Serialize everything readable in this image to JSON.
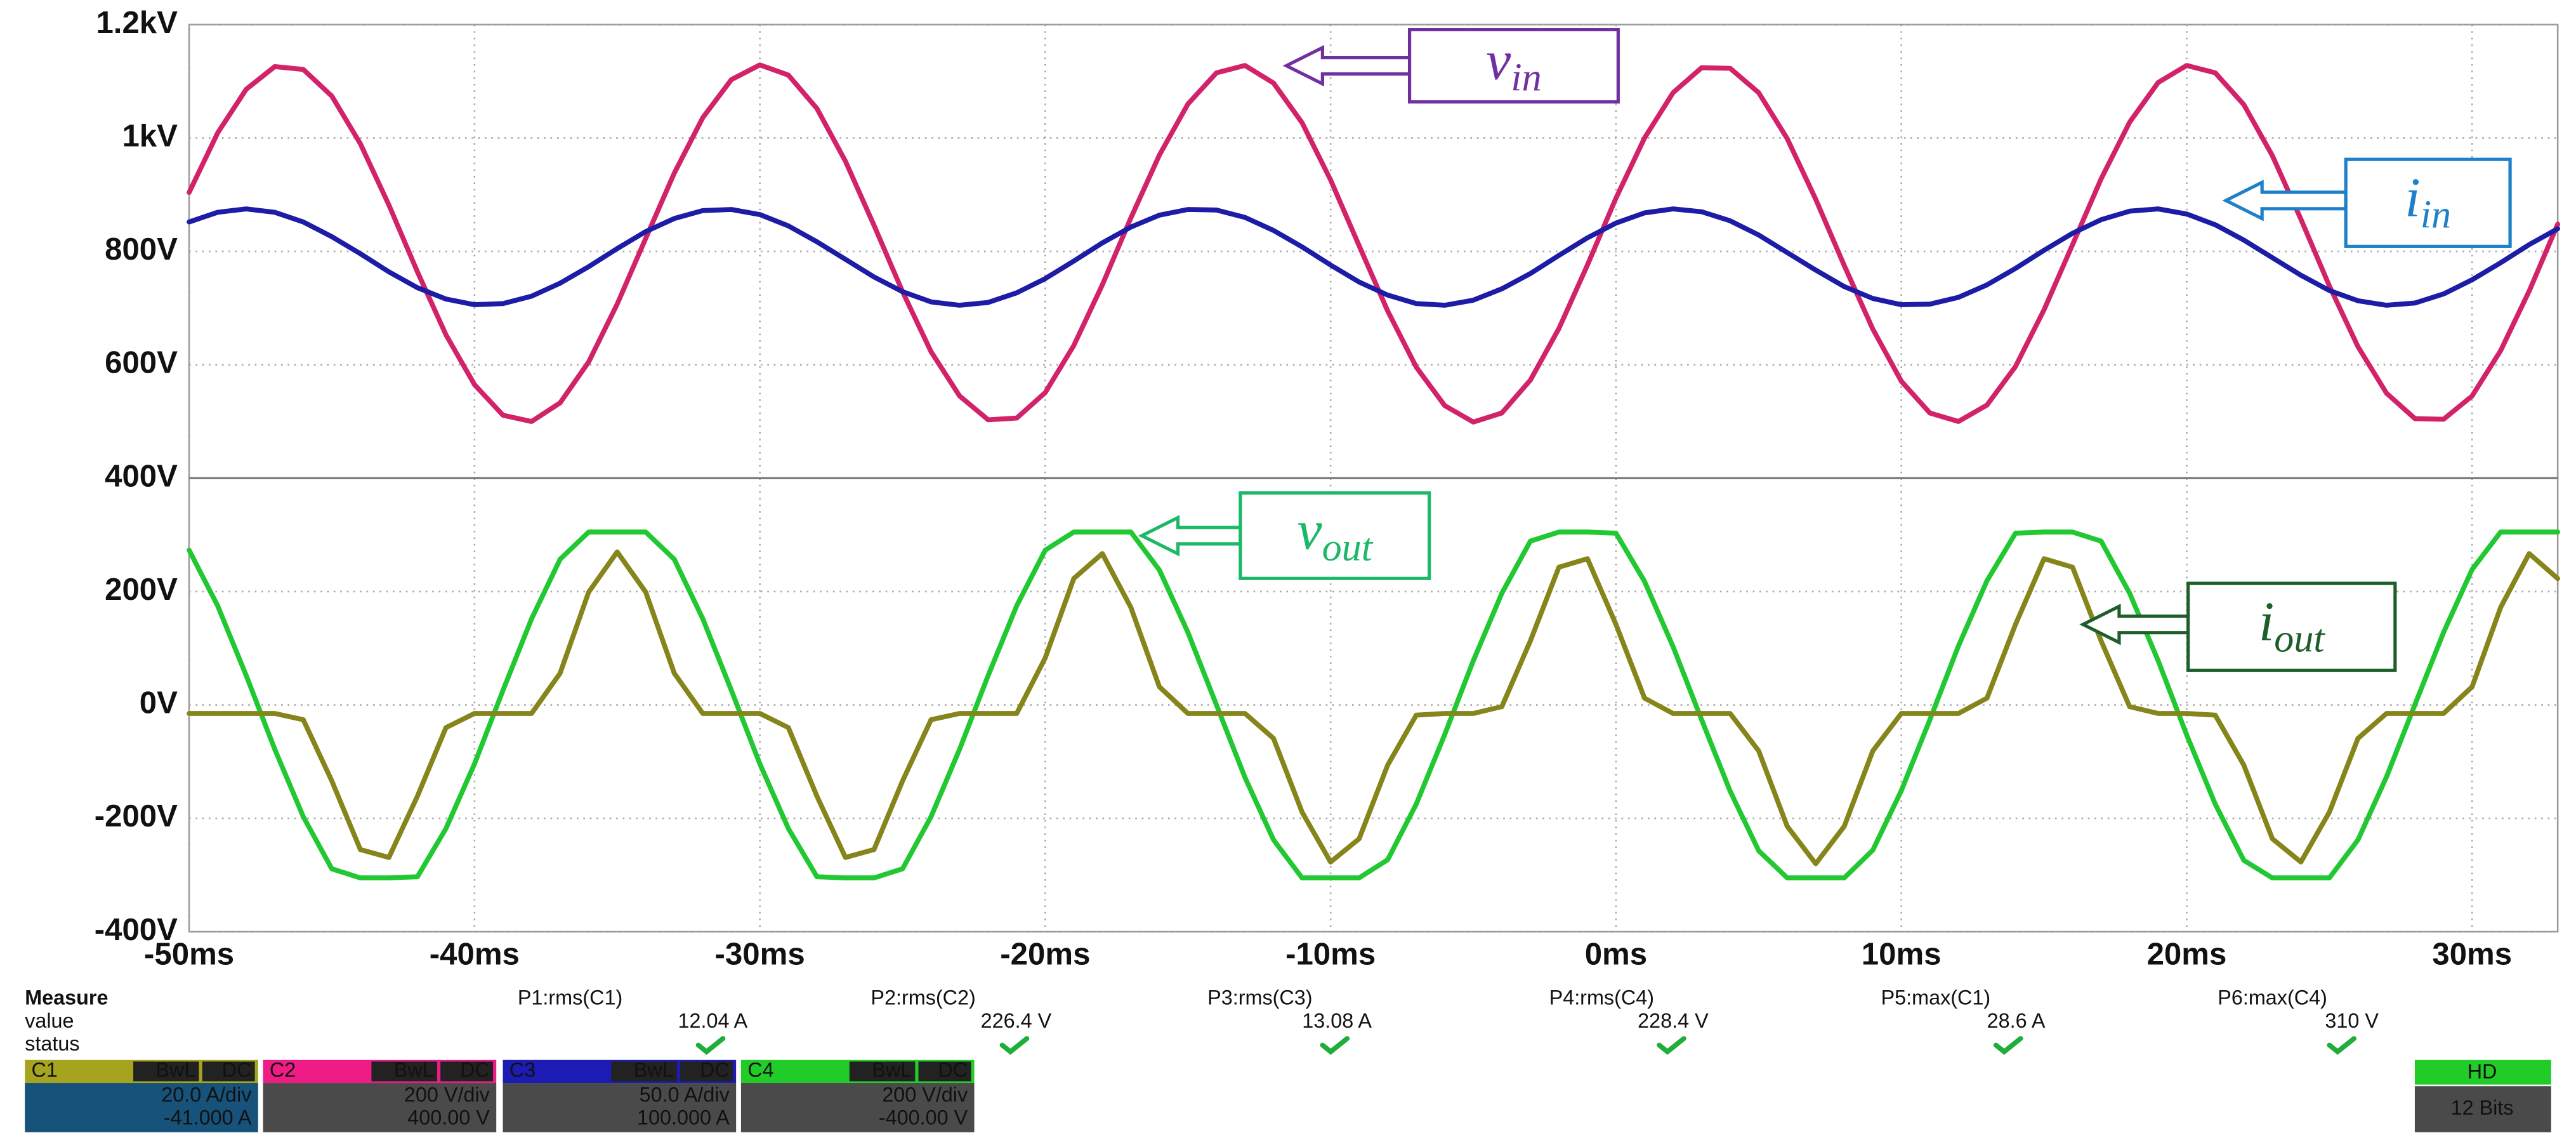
{
  "chart_data": {
    "type": "line",
    "x": [
      -50,
      -49,
      -48,
      -47,
      -46,
      -45,
      -44,
      -43,
      -42,
      -41,
      -40,
      -39,
      -38,
      -37,
      -36,
      -35,
      -34,
      -33,
      -32,
      -31,
      -30,
      -29,
      -28,
      -27,
      -26,
      -25,
      -24,
      -23,
      -22,
      -21,
      -20,
      -19,
      -18,
      -17,
      -16,
      -15,
      -14,
      -13,
      -12,
      -11,
      -10,
      -9,
      -8,
      -7,
      -6,
      -5,
      -4,
      -3,
      -2,
      -1,
      0,
      1,
      2,
      3,
      4,
      5,
      6,
      7,
      8,
      9,
      10,
      11,
      12,
      13,
      14,
      15,
      16,
      17,
      18,
      19,
      20,
      21,
      22,
      23,
      24,
      25,
      26,
      27,
      28,
      29,
      30,
      31,
      32,
      33
    ],
    "series": [
      {
        "color": "#d2236a",
        "values": [
          904,
          1009,
          1086,
          1126,
          1121,
          1074,
          990,
          882,
          764,
          653,
          565,
          511,
          500,
          533,
          605,
          707,
          823,
          938,
          1036,
          1103,
          1129,
          1111,
          1052,
          959,
          846,
          729,
          623,
          545,
          503,
          506,
          551,
          634,
          741,
          859,
          970,
          1060,
          1115,
          1128,
          1097,
          1027,
          926,
          810,
          695,
          596,
          528,
          499,
          515,
          573,
          664,
          776,
          894,
          1000,
          1080,
          1124,
          1123,
          1080,
          999,
          892,
          775,
          663,
          571,
          515,
          500,
          529,
          597,
          697,
          812,
          928,
          1028,
          1098,
          1128,
          1115,
          1059,
          969,
          857,
          739,
          632,
          550,
          505,
          504,
          545,
          625,
          730,
          848
        ]
      },
      {
        "color": "#1c1ca6",
        "values": [
          852,
          869,
          875,
          869,
          852,
          826,
          796,
          764,
          736,
          716,
          706,
          708,
          721,
          744,
          773,
          805,
          835,
          858,
          872,
          874,
          865,
          845,
          817,
          786,
          755,
          729,
          711,
          705,
          710,
          727,
          752,
          783,
          815,
          843,
          864,
          874,
          873,
          860,
          837,
          808,
          776,
          746,
          723,
          708,
          705,
          714,
          734,
          761,
          793,
          824,
          850,
          868,
          875,
          870,
          854,
          829,
          798,
          767,
          738,
          717,
          706,
          707,
          719,
          741,
          770,
          802,
          832,
          856,
          871,
          875,
          866,
          847,
          820,
          789,
          758,
          731,
          713,
          705,
          709,
          725,
          750,
          780,
          812,
          840
        ]
      },
      {
        "color": "#22c832",
        "values": [
          273,
          175,
          52,
          -78,
          -197,
          -289,
          -305,
          -305,
          -303,
          -218,
          -104,
          26,
          152,
          257,
          305,
          305,
          305,
          257,
          152,
          26,
          -104,
          -218,
          -303,
          -305,
          -305,
          -289,
          -197,
          -78,
          52,
          175,
          273,
          305,
          305,
          305,
          238,
          128,
          0,
          -128,
          -238,
          -305,
          -305,
          -305,
          -273,
          -175,
          -52,
          78,
          197,
          289,
          305,
          305,
          303,
          218,
          103,
          -26,
          -152,
          -257,
          -305,
          -305,
          -305,
          -256,
          -151,
          -26,
          104,
          219,
          303,
          305,
          305,
          289,
          197,
          78,
          -53,
          -175,
          -274,
          -305,
          -305,
          -305,
          -238,
          -127,
          1,
          128,
          239,
          305,
          305,
          305
        ]
      },
      {
        "color": "#85851c",
        "values": [
          -15,
          -15,
          -15,
          -15,
          -26,
          -134,
          -255,
          -269,
          -161,
          -40,
          -15,
          -15,
          -15,
          56,
          199,
          270,
          199,
          56,
          -15,
          -15,
          -15,
          -40,
          -161,
          -269,
          -255,
          -134,
          -26,
          -15,
          -15,
          -15,
          83,
          223,
          267,
          172,
          32,
          -15,
          -15,
          -15,
          -59,
          -189,
          -277,
          -236,
          -106,
          -18,
          -15,
          -15,
          -3,
          113,
          243,
          258,
          142,
          12,
          -15,
          -15,
          -15,
          -81,
          -214,
          -280,
          -214,
          -81,
          -15,
          -15,
          -15,
          12,
          142,
          258,
          243,
          113,
          -3,
          -15,
          -15,
          -18,
          -106,
          -236,
          -277,
          -189,
          -59,
          -15,
          -15,
          -15,
          32,
          172,
          267,
          223
        ]
      }
    ],
    "xlim": [
      -50,
      33
    ],
    "ylim": [
      -400,
      1200
    ],
    "xticks": [
      {
        "value": -50,
        "label": "-50ms"
      },
      {
        "value": -40,
        "label": "-40ms"
      },
      {
        "value": -30,
        "label": "-30ms"
      },
      {
        "value": -20,
        "label": "-20ms"
      },
      {
        "value": -10,
        "label": "-10ms"
      },
      {
        "value": 0,
        "label": "0ms"
      },
      {
        "value": 10,
        "label": "10ms"
      },
      {
        "value": 20,
        "label": "20ms"
      },
      {
        "value": 30,
        "label": "30ms"
      }
    ],
    "yticks": [
      {
        "value": -400,
        "label": "-400V"
      },
      {
        "value": -200,
        "label": "-200V"
      },
      {
        "value": 0,
        "label": "0V"
      },
      {
        "value": 200,
        "label": "200V"
      },
      {
        "value": 400,
        "label": "400V"
      },
      {
        "value": 600,
        "label": "600V"
      },
      {
        "value": 800,
        "label": "800V"
      },
      {
        "value": 1000,
        "label": "1kV"
      },
      {
        "value": 1200,
        "label": "1.2kV"
      }
    ],
    "grid": true,
    "annotations": [
      {
        "main": "v",
        "sub": "in",
        "color": "#7030a0"
      },
      {
        "main": "i",
        "sub": "in",
        "color": "#1e80c8"
      },
      {
        "main": "v",
        "sub": "out",
        "color": "#1cb868"
      },
      {
        "main": "i",
        "sub": "out",
        "color": "#1e5e2a"
      }
    ]
  },
  "measure": {
    "title": "Measure",
    "row_labels": [
      "value",
      "status"
    ],
    "items": [
      {
        "label": "P1:rms(C1)",
        "value": "12.04 A"
      },
      {
        "label": "P2:rms(C2)",
        "value": "226.4 V"
      },
      {
        "label": "P3:rms(C3)",
        "value": "13.08 A"
      },
      {
        "label": "P4:rms(C4)",
        "value": "228.4 V"
      },
      {
        "label": "P5:max(C1)",
        "value": "28.6 A"
      },
      {
        "label": "P6:max(C4)",
        "value": "310 V"
      }
    ]
  },
  "channels": [
    {
      "name": "C1",
      "bw": "BwL",
      "coupling": "DC",
      "scale": "20.0 A/div",
      "offset": "-41.000 A"
    },
    {
      "name": "C2",
      "bw": "BwL",
      "coupling": "DC",
      "scale": "200 V/div",
      "offset": "400.00 V"
    },
    {
      "name": "C3",
      "bw": "BwL",
      "coupling": "DC",
      "scale": "50.0 A/div",
      "offset": "100.000 A"
    },
    {
      "name": "C4",
      "bw": "BwL",
      "coupling": "DC",
      "scale": "200 V/div",
      "offset": "-400.00 V"
    }
  ],
  "status": {
    "mode": "HD",
    "resolution": "12 Bits"
  }
}
